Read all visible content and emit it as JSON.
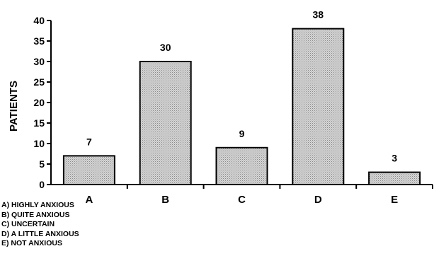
{
  "chart_data": {
    "type": "bar",
    "categories": [
      "A",
      "B",
      "C",
      "D",
      "E"
    ],
    "values": [
      7,
      30,
      9,
      38,
      3
    ],
    "data_labels": [
      "7",
      "30",
      "9",
      "38",
      "3"
    ],
    "title": "",
    "xlabel": "",
    "ylabel": "PATIENTS",
    "ylim": [
      0,
      40
    ],
    "yticks": [
      0,
      5,
      10,
      15,
      20,
      25,
      30,
      35,
      40
    ],
    "grid": false,
    "bar_fill": "#c8c8c8",
    "legend": [
      "A) HIGHLY ANXIOUS",
      "B) QUITE ANXIOUS",
      "C) UNCERTAIN",
      "D) A LITTLE ANXIOUS",
      "E) NOT ANXIOUS"
    ]
  }
}
